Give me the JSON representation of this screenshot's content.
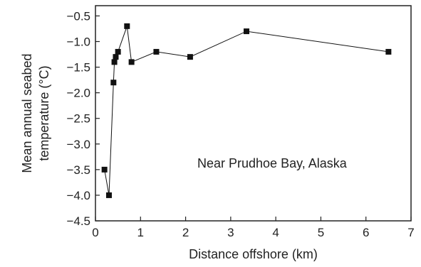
{
  "chart_data": {
    "type": "line",
    "title": "",
    "xlabel": "Distance offshore (km)",
    "ylabel": [
      "Mean annual seabed",
      "temperature (°C)"
    ],
    "xlim": [
      0,
      7
    ],
    "ylim": [
      -4.5,
      -0.3
    ],
    "xticks": [
      0,
      1,
      2,
      3,
      4,
      5,
      6,
      7
    ],
    "xtick_labels": [
      "0",
      "1",
      "2",
      "3",
      "4",
      "5",
      "6",
      "7"
    ],
    "yticks": [
      -0.5,
      -1.0,
      -1.5,
      -2.0,
      -2.5,
      -3.0,
      -3.5,
      -4.0,
      -4.5
    ],
    "ytick_labels": [
      "−0.5",
      "−1.0",
      "−1.5",
      "−2.0",
      "−2.5",
      "−3.0",
      "−3.5",
      "−4.0",
      "−4.5"
    ],
    "grid": false,
    "annotation": "Near Prudhoe Bay, Alaska",
    "marker": "square",
    "color": "#111111",
    "series": [
      {
        "x": [
          0.2,
          0.3,
          0.4,
          0.42,
          0.45,
          0.5,
          0.7,
          0.8,
          1.35,
          2.1,
          3.35,
          6.5
        ],
        "y": [
          -3.5,
          -4.0,
          -1.8,
          -1.4,
          -1.3,
          -1.2,
          -0.7,
          -1.4,
          -1.2,
          -1.3,
          -0.8,
          -1.2
        ]
      }
    ]
  }
}
